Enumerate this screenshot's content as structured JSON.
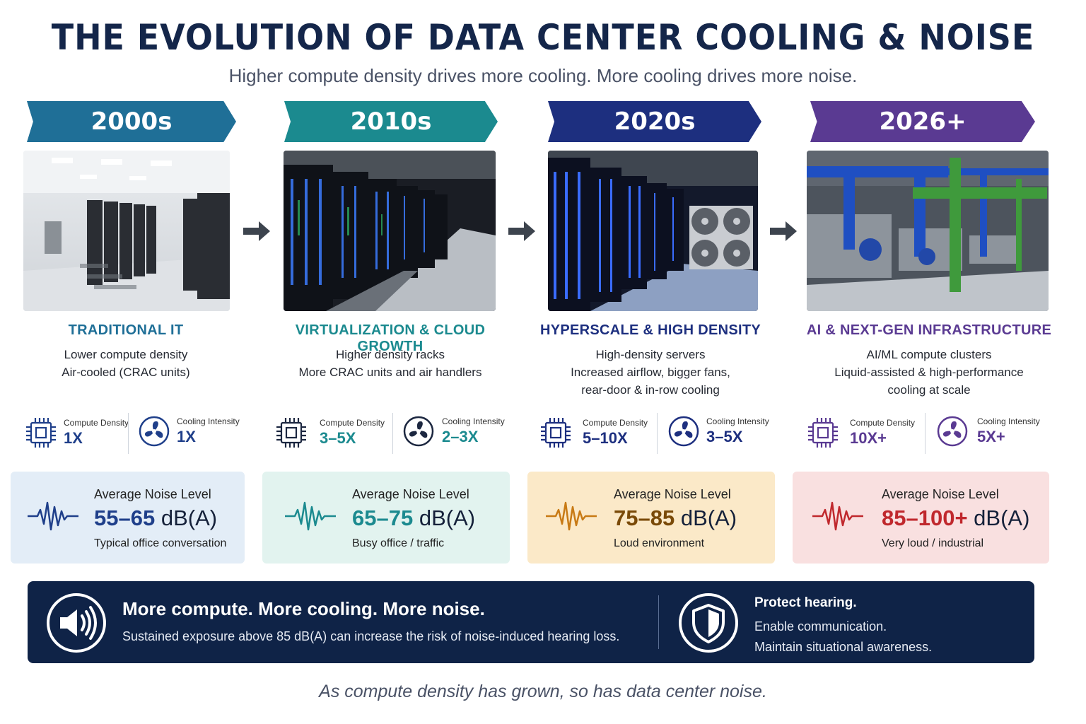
{
  "title": "THE EVOLUTION OF DATA CENTER COOLING & NOISE",
  "subtitle": "Higher compute density drives more cooling. More cooling drives more noise.",
  "colors": {
    "navy": "#14264a",
    "era1": "#1f6f97",
    "era2": "#1b8a8f",
    "era3": "#1d2f7f",
    "era4": "#5a3a92",
    "noise1_bg": "#e3edf7",
    "noise2_bg": "#e2f3ef",
    "noise3_bg": "#fbe9c8",
    "noise4_bg": "#f9e0e0",
    "noise1_accent": "#1f3f8a",
    "noise2_accent": "#1b8a8f",
    "noise3_accent": "#c87a14",
    "noise4_accent": "#c0282d"
  },
  "eras": [
    {
      "label": "2000s",
      "title": "TRADITIONAL IT",
      "desc": [
        "Lower compute density",
        "Air-cooled (CRAC units)"
      ],
      "metrics": {
        "compute_label": "Compute Density",
        "compute_value": "1X",
        "cooling_label": "Cooling Intensity",
        "cooling_value": "1X"
      },
      "noise": {
        "label": "Average Noise Level",
        "value": "55–65",
        "unit": " dB(A)",
        "desc": "Typical office conversation"
      }
    },
    {
      "label": "2010s",
      "title": "VIRTUALIZATION & CLOUD GROWTH",
      "desc": [
        "Higher density racks",
        "More CRAC units and air handlers"
      ],
      "metrics": {
        "compute_label": "Compute Density",
        "compute_value": "3–5X",
        "cooling_label": "Cooling Intensity",
        "cooling_value": "2–3X"
      },
      "noise": {
        "label": "Average Noise Level",
        "value": "65–75",
        "unit": " dB(A)",
        "desc": "Busy office / traffic"
      }
    },
    {
      "label": "2020s",
      "title": "HYPERSCALE & HIGH DENSITY",
      "desc": [
        "High-density servers",
        "Increased airflow, bigger fans,",
        "rear-door & in-row cooling"
      ],
      "metrics": {
        "compute_label": "Compute Density",
        "compute_value": "5–10X",
        "cooling_label": "Cooling Intensity",
        "cooling_value": "3–5X"
      },
      "noise": {
        "label": "Average Noise Level",
        "value": "75–85",
        "unit": " dB(A)",
        "desc": "Loud environment"
      }
    },
    {
      "label": "2026+",
      "title": "AI & NEXT-GEN INFRASTRUCTURE",
      "desc": [
        "AI/ML compute clusters",
        "Liquid-assisted & high-performance",
        "cooling at scale"
      ],
      "metrics": {
        "compute_label": "Compute Density",
        "compute_value": "10X+",
        "cooling_label": "Cooling Intensity",
        "cooling_value": "5X+"
      },
      "noise": {
        "label": "Average Noise Level",
        "value": "85–100+",
        "unit": " dB(A)",
        "desc": "Very loud / industrial"
      }
    }
  ],
  "footer": {
    "headline": "More compute. More cooling. More noise.",
    "text": "Sustained exposure above 85 dB(A) can increase the risk of noise-induced hearing loss.",
    "protect_title": "Protect hearing.",
    "protect_lines": [
      "Enable communication.",
      "Maintain situational awareness."
    ]
  },
  "caption": "As compute density has grown, so has data center noise."
}
